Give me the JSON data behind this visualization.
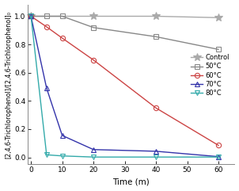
{
  "title": "",
  "xlabel": "Time (m)",
  "ylabel": "[2,4,6-Trichlorophenol]/[2,4,6-Trichlorophenol]₀",
  "xlim": [
    -1,
    65
  ],
  "ylim": [
    -0.05,
    1.08
  ],
  "xticks": [
    0,
    10,
    20,
    30,
    40,
    50,
    60
  ],
  "yticks": [
    0.0,
    0.2,
    0.4,
    0.6,
    0.8,
    1.0
  ],
  "series": [
    {
      "label": "Control",
      "color": "#aaaaaa",
      "marker": "*",
      "markersize": 7,
      "linewidth": 1.0,
      "x": [
        0,
        20,
        40,
        60
      ],
      "y": [
        1.0,
        1.0,
        1.0,
        0.99
      ]
    },
    {
      "label": "50°C",
      "color": "#888888",
      "marker": "s",
      "markersize": 4.5,
      "linewidth": 1.0,
      "x": [
        0,
        5,
        10,
        20,
        40,
        60
      ],
      "y": [
        1.0,
        1.0,
        1.0,
        0.92,
        0.855,
        0.765
      ]
    },
    {
      "label": "60°C",
      "color": "#cc4444",
      "marker": "o",
      "markersize": 4.5,
      "linewidth": 1.0,
      "x": [
        0,
        5,
        10,
        20,
        40,
        60
      ],
      "y": [
        1.0,
        0.925,
        0.845,
        0.69,
        0.35,
        0.085
      ]
    },
    {
      "label": "70°C",
      "color": "#3333aa",
      "marker": "^",
      "markersize": 4.5,
      "linewidth": 1.0,
      "x": [
        0,
        5,
        10,
        20,
        40,
        60
      ],
      "y": [
        1.0,
        0.49,
        0.155,
        0.055,
        0.043,
        0.005
      ]
    },
    {
      "label": "80°C",
      "color": "#33aaaa",
      "marker": "v",
      "markersize": 4.5,
      "linewidth": 1.0,
      "x": [
        0,
        5,
        10,
        20,
        40,
        60
      ],
      "y": [
        1.0,
        0.018,
        0.01,
        0.002,
        0.002,
        0.002
      ]
    }
  ],
  "figure_width": 3.02,
  "figure_height": 2.41,
  "dpi": 100,
  "bg_color": "#ffffff"
}
